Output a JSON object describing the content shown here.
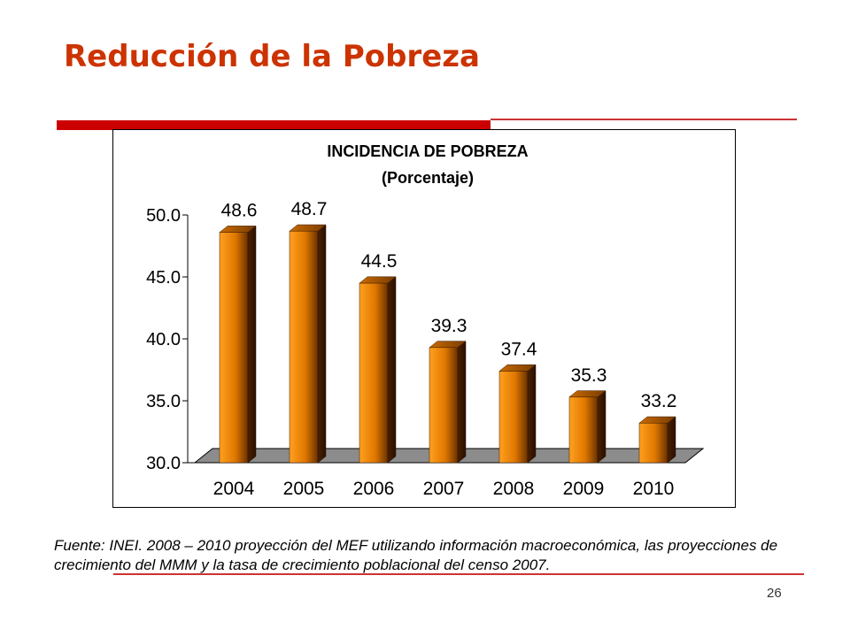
{
  "slide": {
    "title": "Reducción de la Pobreza",
    "source_note": "Fuente: INEI. 2008 – 2010 proyección del MEF utilizando información macroeconómica, las proyecciones de crecimiento del MMM y la tasa de crecimiento poblacional del censo 2007.",
    "page_number": "26"
  },
  "colors": {
    "title": "#cc3300",
    "accent_bar": "#cc0000",
    "bar_light": "#ffa020",
    "bar_dark": "#4a2000",
    "floor": "#8c8c8c"
  },
  "chart_data": {
    "type": "bar",
    "title": "INCIDENCIA DE POBREZA",
    "subtitle": "(Porcentaje)",
    "categories": [
      "2004",
      "2005",
      "2006",
      "2007",
      "2008",
      "2009",
      "2010"
    ],
    "values": [
      48.6,
      48.7,
      44.5,
      39.3,
      37.4,
      35.3,
      33.2
    ],
    "data_labels": [
      "48.6",
      "48.7",
      "44.5",
      "39.3",
      "37.4",
      "35.3",
      "33.2"
    ],
    "yticks": [
      "30.0",
      "35.0",
      "40.0",
      "45.0",
      "50.0"
    ],
    "ytick_values": [
      30,
      35,
      40,
      45,
      50
    ],
    "ylim": [
      30,
      50
    ],
    "xlabel": "",
    "ylabel": "",
    "legend": "none",
    "grid": false,
    "style": "3d-column"
  }
}
